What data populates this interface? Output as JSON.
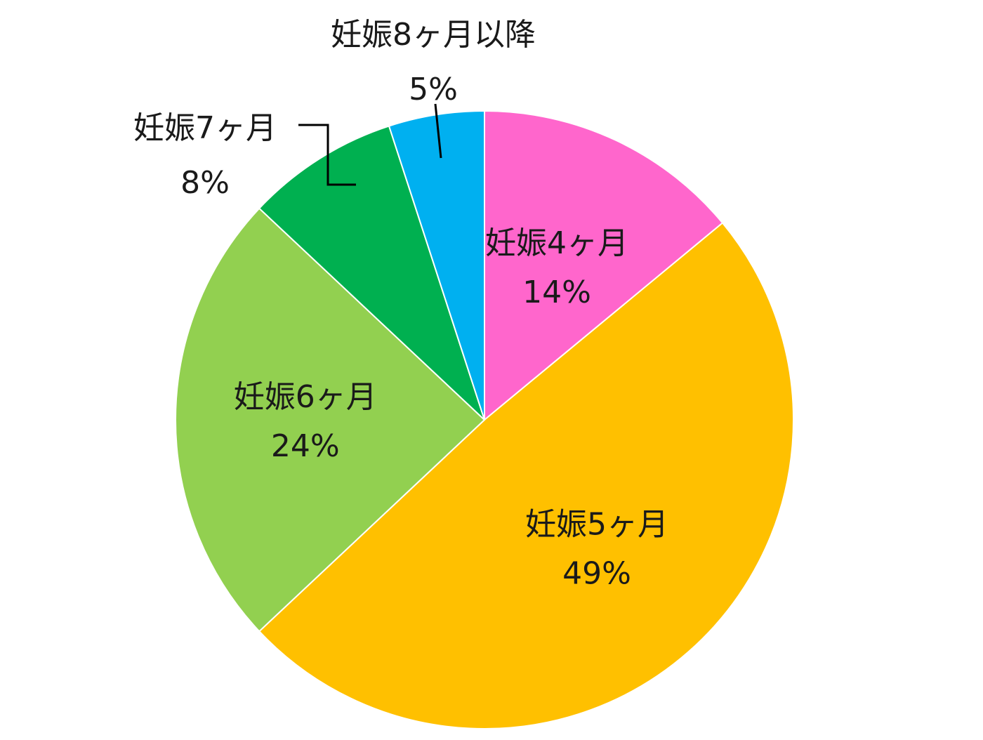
{
  "chart_data": {
    "type": "pie",
    "title": "",
    "start_angle_deg": 0,
    "direction": "clockwise",
    "slices": [
      {
        "label": "妊娠4ヶ月",
        "value": 14,
        "value_label": "14%",
        "color": "#FF66CC"
      },
      {
        "label": "妊娠5ヶ月",
        "value": 49,
        "value_label": "49%",
        "color": "#FFC000"
      },
      {
        "label": "妊娠6ヶ月",
        "value": 24,
        "value_label": "24%",
        "color": "#92D050"
      },
      {
        "label": "妊娠7ヶ月",
        "value": 8,
        "value_label": "8%",
        "color": "#00B050"
      },
      {
        "label": "妊娠8ヶ月以降",
        "value": 5,
        "value_label": "5%",
        "color": "#00B0F0"
      }
    ],
    "legend": "none"
  }
}
